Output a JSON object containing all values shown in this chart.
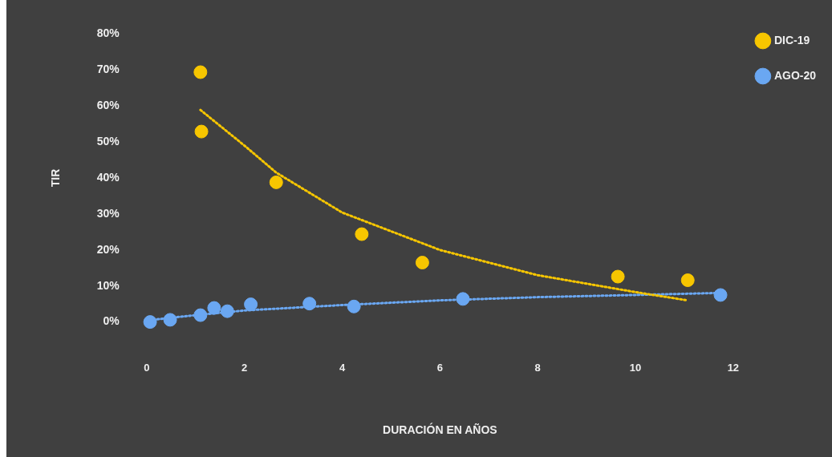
{
  "chart_data": {
    "type": "scatter",
    "xlabel": "DURACIÓN EN AÑOS",
    "ylabel": "TIR",
    "xlim": [
      0,
      12
    ],
    "xticks": [
      0,
      2,
      4,
      6,
      8,
      10,
      12
    ],
    "ylim": [
      0,
      80
    ],
    "yticks": [
      {
        "value": 0,
        "label": "0%"
      },
      {
        "value": 10,
        "label": "10%"
      },
      {
        "value": 20,
        "label": "20%"
      },
      {
        "value": 30,
        "label": "30%"
      },
      {
        "value": 40,
        "label": "40%"
      },
      {
        "value": 50,
        "label": "50%"
      },
      {
        "value": 60,
        "label": "60%"
      },
      {
        "value": 70,
        "label": "70%"
      },
      {
        "value": 80,
        "label": "80%"
      }
    ],
    "legend": "top right",
    "marker": "circle",
    "series": [
      {
        "name": "DIC-19",
        "color": "#f7c600",
        "x": [
          1.1,
          1.12,
          2.65,
          4.4,
          5.64,
          9.64,
          11.07
        ],
        "values": [
          69.4,
          52.9,
          38.8,
          24.4,
          16.5,
          12.6,
          11.6
        ]
      },
      {
        "name": "AGO-20",
        "color": "#6aa7f2",
        "x": [
          0.07,
          0.48,
          1.1,
          1.38,
          1.65,
          2.13,
          3.33,
          4.24,
          6.47,
          11.74
        ],
        "values": [
          0,
          0.6,
          1.9,
          3.9,
          3,
          4.9,
          5.1,
          4.3,
          6.4,
          7.5
        ]
      },
      {
        "type": "line",
        "color": "#f7c600",
        "line_style": "dotted",
        "marker": "none",
        "x": [
          1.1,
          2,
          2.65,
          4,
          6,
          8,
          10,
          11.07
        ],
        "values": [
          58.9,
          49,
          41.5,
          30.4,
          20,
          13,
          8.3,
          6
        ]
      },
      {
        "type": "line",
        "color": "#6aa7f2",
        "line_style": "dotted",
        "marker": "none",
        "x": [
          0.05,
          1,
          2,
          4,
          6,
          8,
          10,
          11.8
        ],
        "values": [
          0.5,
          1.9,
          3.2,
          4.7,
          6,
          6.9,
          7.5,
          8.1
        ]
      }
    ]
  }
}
